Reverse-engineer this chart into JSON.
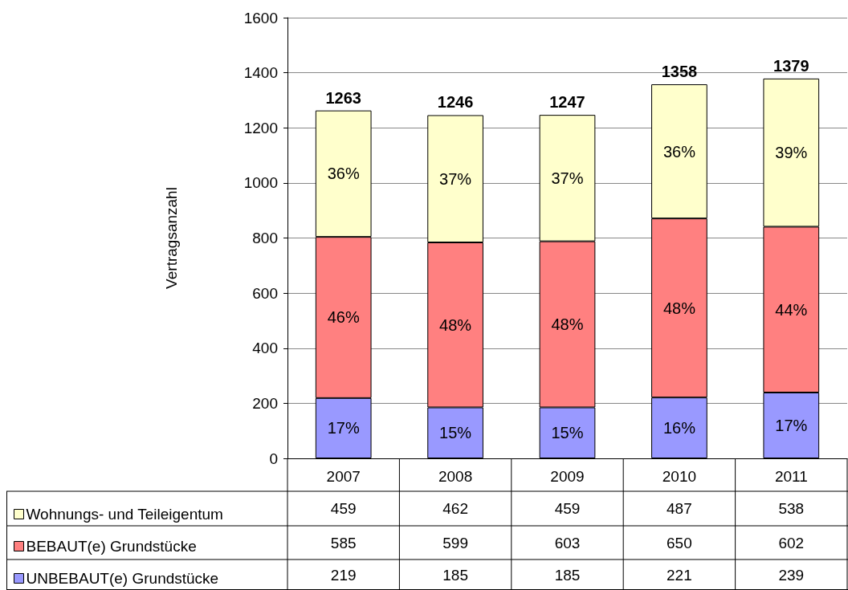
{
  "chart_data": {
    "type": "bar",
    "stacked": true,
    "ylabel": "Vertragsanzahl",
    "categories": [
      "2007",
      "2008",
      "2009",
      "2010",
      "2011"
    ],
    "ylim": [
      0,
      1600
    ],
    "yticks": [
      0,
      200,
      400,
      600,
      800,
      1000,
      1200,
      1400,
      1600
    ],
    "grid": "y",
    "legend": "bottom",
    "data_labels": true,
    "series": [
      {
        "name": "UNBEBAUT(e) Grundstücke",
        "color": "#9999ff",
        "values": [
          219,
          185,
          185,
          221,
          239
        ]
      },
      {
        "name": "BEBAUT(e) Grundstücke",
        "color": "#ff8080",
        "values": [
          585,
          599,
          603,
          650,
          602
        ]
      },
      {
        "name": "Wohnungs- und Teileigentum",
        "color": "#ffffcc",
        "values": [
          459,
          462,
          459,
          487,
          538
        ]
      }
    ],
    "annotations": [
      "17%",
      "15%",
      "15%",
      "16%",
      "17%",
      "46%",
      "48%",
      "48%",
      "48%",
      "44%",
      "36%",
      "37%",
      "37%",
      "36%",
      "39%"
    ],
    "totals": [
      "1263",
      "1246",
      "1247",
      "1358",
      "1379"
    ]
  }
}
